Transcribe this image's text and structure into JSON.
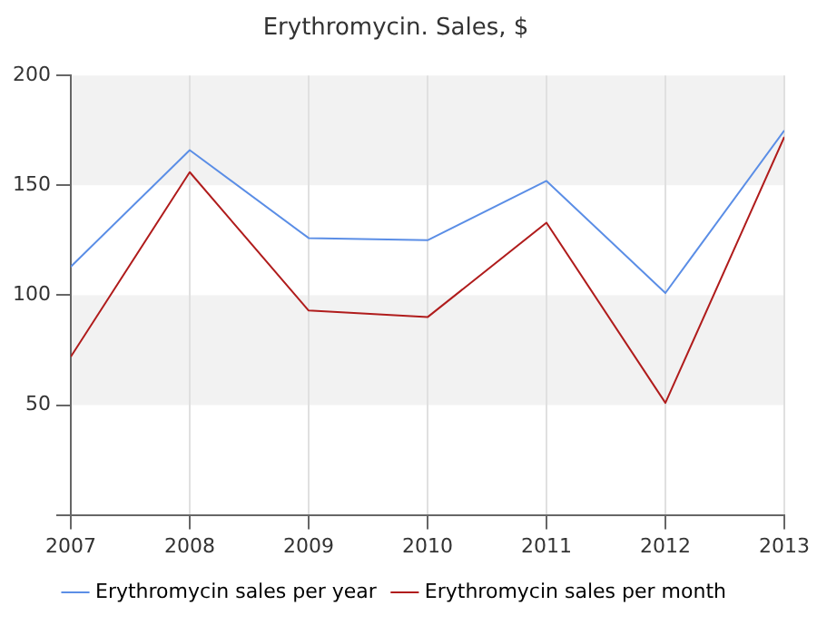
{
  "chart_data": {
    "type": "line",
    "title": "Erythromycin. Sales, $",
    "x": [
      2007,
      2008,
      2009,
      2010,
      2011,
      2012,
      2013
    ],
    "xlim": [
      2007,
      2013
    ],
    "xticks": [
      2007,
      2008,
      2009,
      2010,
      2011,
      2012,
      2013
    ],
    "ylim": [
      0,
      200
    ],
    "yticks": [
      {
        "value": 0,
        "label": null
      },
      50,
      100,
      150,
      200
    ],
    "grid": true,
    "legend": "bottom",
    "marker": "none",
    "series": [
      {
        "name": "Erythromycin sales per year",
        "color": "#5b8ee6",
        "values": [
          113,
          166,
          126,
          125,
          152,
          101,
          175
        ]
      },
      {
        "name": "Erythromycin sales per month",
        "color": "#b01c1c",
        "values": [
          72,
          156,
          93,
          90,
          133,
          51,
          172
        ]
      }
    ]
  }
}
